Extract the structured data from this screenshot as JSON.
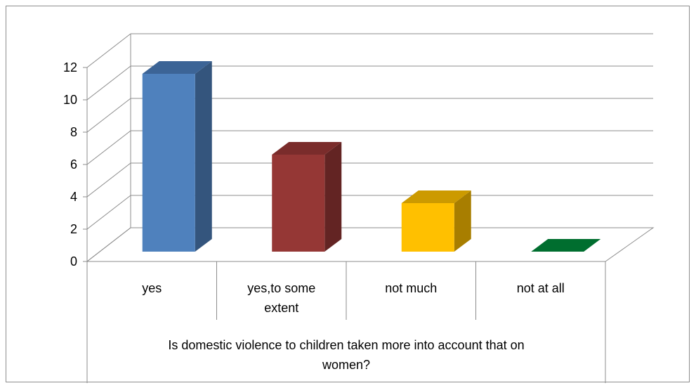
{
  "chart_data": {
    "type": "bar",
    "style": "3d-column",
    "categories": [
      "yes",
      "yes,to some extent",
      "not much",
      "not  at all"
    ],
    "category_lines": [
      [
        "yes"
      ],
      [
        "yes,to some",
        "extent"
      ],
      [
        "not much"
      ],
      [
        "not  at all"
      ]
    ],
    "values": [
      11,
      6,
      3,
      0
    ],
    "colors": [
      "#4f81bd",
      "#953735",
      "#ffc000",
      "#00883a"
    ],
    "side_colors": [
      "#34557d",
      "#632423",
      "#a87e00",
      "#005a26"
    ],
    "top_colors": [
      "#3c6496",
      "#7a2c2b",
      "#cc9a00",
      "#006e2f"
    ],
    "group_label_lines": [
      "Is domestic violence to children taken more into account that on",
      "women?"
    ],
    "ylim": [
      0,
      12
    ],
    "yticks": [
      0,
      2,
      4,
      6,
      8,
      10,
      12
    ],
    "grid": true,
    "legend": "none"
  }
}
